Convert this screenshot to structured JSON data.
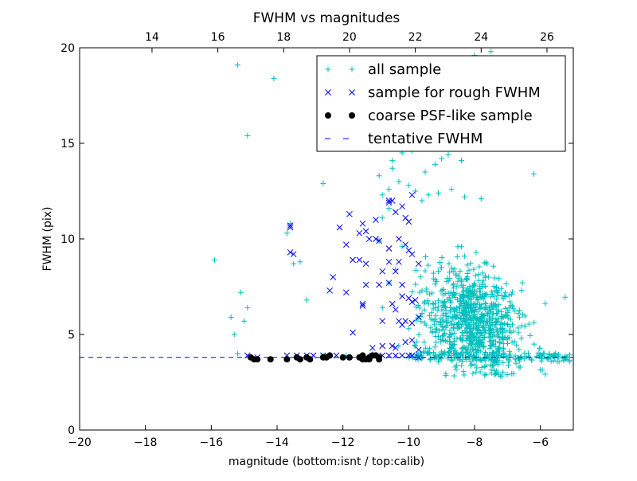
{
  "chart_data": {
    "type": "scatter",
    "title": "FWHM vs magnitudes",
    "xlabel": "magnitude (bottom:isnt / top:calib)",
    "ylabel": "FWHM (pix)",
    "xlim": [
      -20,
      -5
    ],
    "ylim": [
      0,
      20
    ],
    "x_ticks": [
      -20,
      -18,
      -16,
      -14,
      -12,
      -10,
      -8,
      -6
    ],
    "x_tick_labels": [
      "−20",
      "−18",
      "−16",
      "−14",
      "−12",
      "−10",
      "−8",
      "−6"
    ],
    "y_ticks": [
      0,
      5,
      10,
      15,
      20
    ],
    "y_tick_labels": [
      "0",
      "5",
      "10",
      "15",
      "20"
    ],
    "top_axis": {
      "offset": 31.8,
      "ticks": [
        14,
        16,
        18,
        20,
        22,
        24,
        26
      ],
      "tick_labels": [
        "14",
        "16",
        "18",
        "20",
        "22",
        "24",
        "26"
      ]
    },
    "grid": false,
    "legend_position": "top-right",
    "series": [
      {
        "name": "all sample",
        "marker": "plus",
        "color": "#00bfbf",
        "cloud_center": [
          -8.1,
          5.8
        ],
        "points": [
          [
            -15.2,
            19.1
          ],
          [
            -14.1,
            18.4
          ],
          [
            -14.9,
            15.4
          ],
          [
            -15.9,
            8.9
          ],
          [
            -15.1,
            7.2
          ],
          [
            -14.9,
            6.4
          ],
          [
            -15.4,
            5.9
          ],
          [
            -15.0,
            5.7
          ],
          [
            -15.3,
            5.0
          ],
          [
            -15.2,
            4.0
          ],
          [
            -13.6,
            10.8
          ],
          [
            -13.7,
            10.3
          ],
          [
            -13.5,
            8.7
          ],
          [
            -13.3,
            8.8
          ],
          [
            -13.1,
            6.8
          ],
          [
            -12.6,
            12.9
          ],
          [
            -10.8,
            11.1
          ],
          [
            -10.7,
            15.4
          ],
          [
            -10.4,
            15.1
          ],
          [
            -11.2,
            14.7
          ],
          [
            -10.5,
            14.1
          ],
          [
            -10.2,
            14.5
          ],
          [
            -10.5,
            13.7
          ],
          [
            -10.9,
            13.3
          ],
          [
            -10.3,
            13.0
          ],
          [
            -10.8,
            12.3
          ],
          [
            -10.6,
            12.6
          ],
          [
            -10.6,
            11.6
          ],
          [
            -10.9,
            9.9
          ],
          [
            -10.2,
            9.6
          ],
          [
            -10.4,
            8.4
          ],
          [
            -10.6,
            7.7
          ],
          [
            -10.8,
            6.4
          ],
          [
            -10.0,
            5.3
          ],
          [
            -11.1,
            4.0
          ],
          [
            -11.9,
            3.9
          ],
          [
            -12.6,
            3.9
          ],
          [
            -10.0,
            12.8
          ],
          [
            -9.8,
            12.5
          ],
          [
            -9.6,
            12.0
          ],
          [
            -9.4,
            12.3
          ],
          [
            -9.1,
            12.4
          ],
          [
            -8.7,
            12.6
          ],
          [
            -8.3,
            12.2
          ],
          [
            -7.8,
            12.1
          ],
          [
            -9.5,
            13.5
          ],
          [
            -9.2,
            13.9
          ],
          [
            -9.0,
            14.2
          ],
          [
            -8.8,
            14.4
          ],
          [
            -8.4,
            14.1
          ],
          [
            -9.9,
            14.6
          ],
          [
            -9.5,
            15.2
          ],
          [
            -8.2,
            15.1
          ],
          [
            -9.9,
            16.3
          ],
          [
            -9.4,
            16.6
          ],
          [
            -8.8,
            17.0
          ],
          [
            -8.5,
            17.7
          ],
          [
            -8.0,
            18.1
          ],
          [
            -8.0,
            19.6
          ],
          [
            -7.5,
            19.8
          ],
          [
            -7.0,
            19.2
          ],
          [
            -6.2,
            13.4
          ],
          [
            -10.3,
            4.4
          ],
          [
            -9.8,
            4.4
          ]
        ]
      },
      {
        "name": "sample for rough FWHM",
        "marker": "x",
        "color": "#0000ff",
        "points": [
          [
            -13.6,
            10.7
          ],
          [
            -13.6,
            10.6
          ],
          [
            -13.6,
            9.3
          ],
          [
            -13.5,
            9.2
          ],
          [
            -12.3,
            8.0
          ],
          [
            -12.4,
            7.3
          ],
          [
            -12.1,
            10.6
          ],
          [
            -11.8,
            11.3
          ],
          [
            -11.9,
            9.7
          ],
          [
            -11.7,
            8.9
          ],
          [
            -11.5,
            8.9
          ],
          [
            -11.3,
            8.7
          ],
          [
            -11.9,
            7.2
          ],
          [
            -11.7,
            5.1
          ],
          [
            -11.4,
            10.8
          ],
          [
            -11.5,
            10.3
          ],
          [
            -11.3,
            10.4
          ],
          [
            -11.2,
            10.0
          ],
          [
            -11.3,
            7.6
          ],
          [
            -11.4,
            6.6
          ],
          [
            -11.4,
            6.5
          ],
          [
            -11.1,
            4.3
          ],
          [
            -11.0,
            11.0
          ],
          [
            -11.0,
            10.0
          ],
          [
            -10.9,
            9.9
          ],
          [
            -10.8,
            8.3
          ],
          [
            -10.9,
            7.6
          ],
          [
            -10.8,
            5.7
          ],
          [
            -10.8,
            4.4
          ],
          [
            -10.6,
            11.9
          ],
          [
            -10.6,
            12.0
          ],
          [
            -10.5,
            12.0
          ],
          [
            -10.4,
            11.4
          ],
          [
            -10.6,
            9.5
          ],
          [
            -10.6,
            8.8
          ],
          [
            -10.4,
            8.3
          ],
          [
            -10.6,
            7.7
          ],
          [
            -10.5,
            6.6
          ],
          [
            -10.4,
            6.3
          ],
          [
            -10.3,
            5.7
          ],
          [
            -10.5,
            4.4
          ],
          [
            -10.4,
            4.3
          ],
          [
            -10.2,
            11.7
          ],
          [
            -10.1,
            11.1
          ],
          [
            -10.0,
            10.9
          ],
          [
            -10.3,
            10.0
          ],
          [
            -10.1,
            9.7
          ],
          [
            -10.0,
            9.4
          ],
          [
            -10.3,
            8.8
          ],
          [
            -10.2,
            7.6
          ],
          [
            -10.2,
            7.0
          ],
          [
            -10.0,
            6.9
          ],
          [
            -9.9,
            6.7
          ],
          [
            -10.1,
            5.7
          ],
          [
            -10.2,
            5.5
          ],
          [
            -10.1,
            4.6
          ],
          [
            -9.9,
            12.3
          ],
          [
            -9.9,
            9.2
          ],
          [
            -9.7,
            8.7
          ],
          [
            -9.8,
            6.8
          ],
          [
            -9.7,
            5.9
          ],
          [
            -9.9,
            5.6
          ],
          [
            -9.9,
            4.7
          ],
          [
            -9.7,
            4.2
          ],
          [
            -13.7,
            3.9
          ],
          [
            -12.9,
            3.9
          ],
          [
            -12.6,
            3.9
          ],
          [
            -12.2,
            3.9
          ],
          [
            -11.1,
            3.9
          ],
          [
            -10.8,
            3.9
          ],
          [
            -10.6,
            3.9
          ],
          [
            -10.4,
            3.9
          ],
          [
            -10.2,
            3.9
          ],
          [
            -10.0,
            3.9
          ],
          [
            -9.9,
            3.9
          ],
          [
            -9.7,
            3.8
          ],
          [
            -14.9,
            3.9
          ],
          [
            -14.6,
            3.8
          ],
          [
            -13.4,
            3.9
          ],
          [
            -13.1,
            3.9
          ]
        ]
      },
      {
        "name": "coarse PSF-like sample",
        "marker": "dot",
        "color": "#000000",
        "points": [
          [
            -14.8,
            3.8
          ],
          [
            -14.7,
            3.7
          ],
          [
            -14.6,
            3.7
          ],
          [
            -14.2,
            3.7
          ],
          [
            -13.7,
            3.7
          ],
          [
            -13.4,
            3.8
          ],
          [
            -13.3,
            3.7
          ],
          [
            -13.1,
            3.8
          ],
          [
            -13.0,
            3.7
          ],
          [
            -12.6,
            3.8
          ],
          [
            -12.5,
            3.8
          ],
          [
            -12.4,
            3.9
          ],
          [
            -12.0,
            3.8
          ],
          [
            -11.8,
            3.8
          ],
          [
            -11.5,
            3.8
          ],
          [
            -11.4,
            3.7
          ],
          [
            -11.3,
            3.7
          ],
          [
            -11.2,
            3.8
          ],
          [
            -11.1,
            3.9
          ],
          [
            -11.0,
            3.9
          ],
          [
            -10.9,
            3.8
          ],
          [
            -10.9,
            3.7
          ],
          [
            -11.4,
            3.9
          ],
          [
            -11.2,
            3.7
          ]
        ]
      },
      {
        "name": "tentative FWHM",
        "marker": "dashed-line",
        "color": "#0000ff",
        "value": 3.8
      }
    ]
  }
}
